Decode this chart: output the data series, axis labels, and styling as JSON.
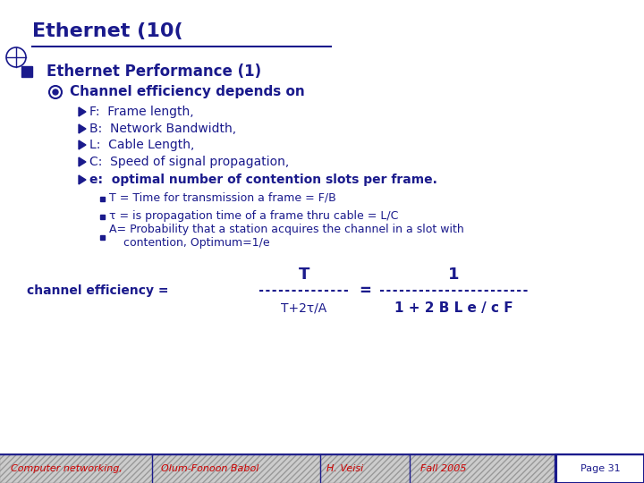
{
  "title": "Ethernet (10(",
  "bg_color": "#ffffff",
  "navy": "#1a1a8c",
  "red": "#cc0000",
  "footer_page": "Page 31",
  "main_bullet": "Ethernet Performance (1)",
  "sub_bullet": "Channel efficiency depends on",
  "arrow_items": [
    "F:  Frame length,",
    "B:  Network Bandwidth,",
    "L:  Cable Length,",
    "C:  Speed of signal propagation,",
    "e:  optimal number of contention slots per frame."
  ],
  "square_items": [
    "T = Time for transmission a frame = F/B",
    "τ = is propagation time of a frame thru cable = L/C",
    "A= Probability that a station acquires the channel in a slot with\n    contention, Optimum=1/e"
  ],
  "formula_label": "channel efficiency =",
  "formula_num1": "T",
  "formula_den1": "T+2τ/A",
  "formula_num2": "1",
  "formula_den2": "1 + 2 B L e / c F"
}
